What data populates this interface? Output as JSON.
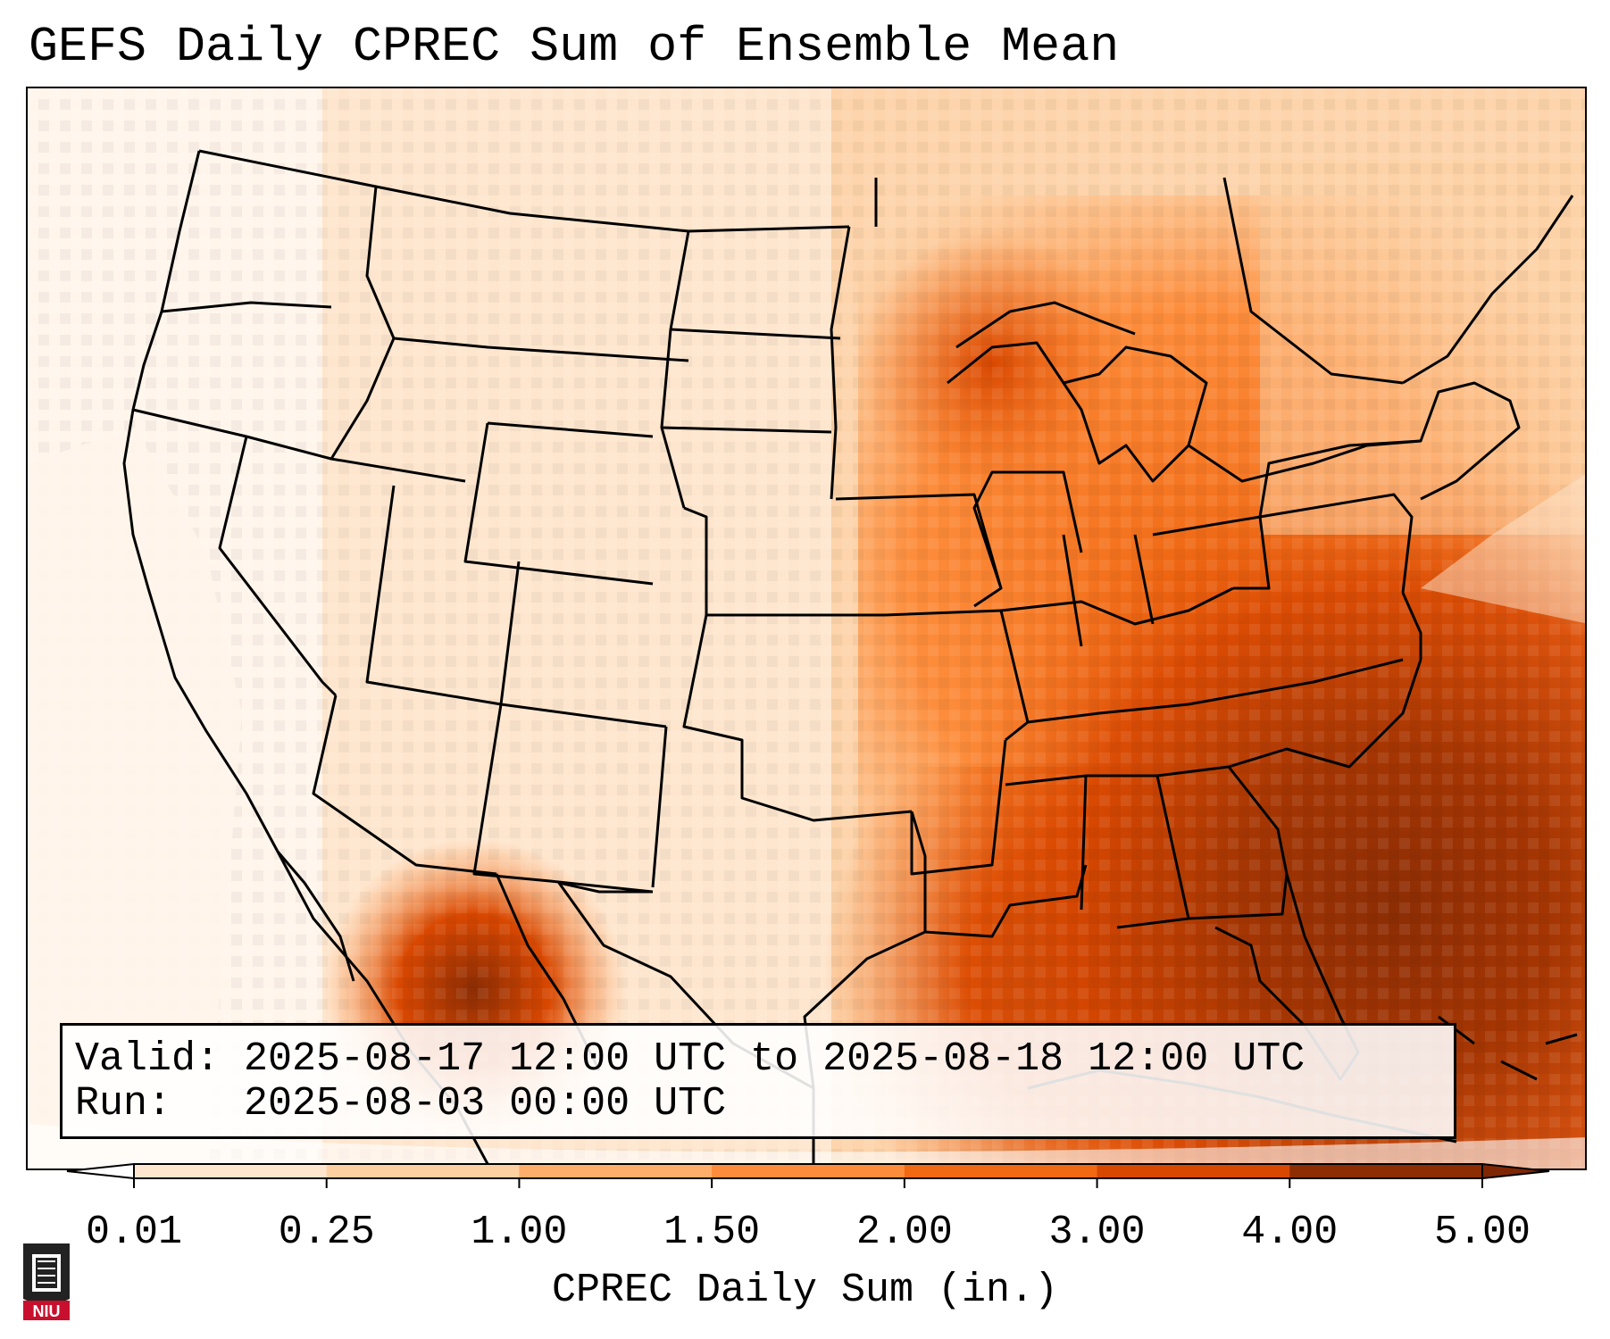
{
  "title": "GEFS Daily CPREC Sum of Ensemble Mean",
  "info": {
    "valid_line": "Valid: 2025-08-17 12:00 UTC to 2025-08-18 12:00 UTC",
    "run_line": "Run:   2025-08-03 00:00 UTC"
  },
  "colorbar": {
    "label": "CPREC Daily Sum (in.)",
    "ticks": [
      "0.01",
      "0.25",
      "1.00",
      "1.50",
      "2.00",
      "3.00",
      "4.00",
      "5.00"
    ],
    "colors": [
      "#fff5eb",
      "#fee6ce",
      "#fdd0a2",
      "#fdae6b",
      "#fd8d3c",
      "#f16913",
      "#d94801",
      "#8c2d04"
    ],
    "under_color": "#ffffff",
    "over_color": "#7f2704"
  },
  "map": {
    "region": "CONUS",
    "field": "CPREC",
    "outline_color": "#000000"
  },
  "logo": {
    "text": "NIU",
    "icon": "niu-logo-icon",
    "colors": {
      "red": "#c8102e",
      "dark": "#222222"
    }
  }
}
